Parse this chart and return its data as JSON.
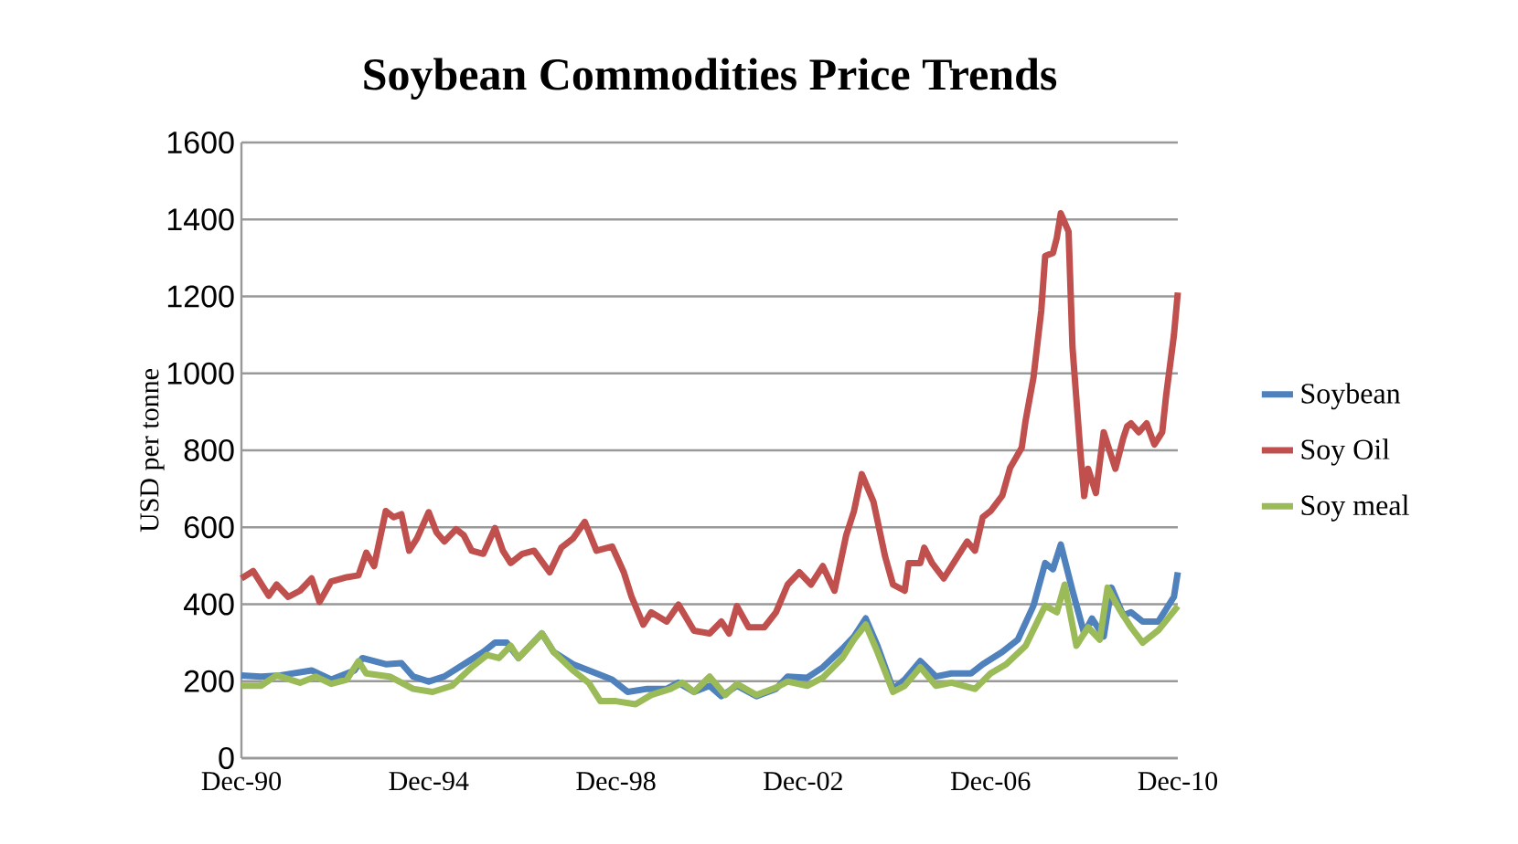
{
  "chart_data": {
    "type": "line",
    "title": "Soybean Commodities Price Trends",
    "ylabel": "USD per tonne",
    "xlim": [
      "1990-12",
      "2010-12"
    ],
    "xticks": [
      {
        "value": "1990-12",
        "label": "Dec-90"
      },
      {
        "value": "1994-12",
        "label": "Dec-94"
      },
      {
        "value": "1998-12",
        "label": "Dec-98"
      },
      {
        "value": "2002-12",
        "label": "Dec-02"
      },
      {
        "value": "2006-12",
        "label": "Dec-06"
      },
      {
        "value": "2010-12",
        "label": "Dec-10"
      }
    ],
    "ylim": [
      0,
      1600
    ],
    "yticks": [
      0,
      200,
      400,
      600,
      800,
      1000,
      1200,
      1400,
      1600
    ],
    "grid": "y",
    "legend": "right",
    "marker": "none",
    "series": [
      {
        "name": "Soybean",
        "color": "#4f81bd",
        "x": [
          "1990-12",
          "1991-05",
          "1991-10",
          "1992-06",
          "1992-11",
          "1993-05",
          "1993-07",
          "1994-01",
          "1994-05",
          "1994-08",
          "1994-12",
          "1995-04",
          "1995-09",
          "1996-02",
          "1996-05",
          "1996-08",
          "1996-11",
          "1997-02",
          "1997-05",
          "1997-08",
          "1998-01",
          "1998-07",
          "1998-11",
          "1999-03",
          "1999-08",
          "2000-01",
          "2000-04",
          "2000-08",
          "2000-12",
          "2001-03",
          "2001-07",
          "2001-12",
          "2002-05",
          "2002-08",
          "2003-01",
          "2003-05",
          "2003-10",
          "2004-01",
          "2004-04",
          "2004-07",
          "2004-11",
          "2005-02",
          "2005-06",
          "2005-10",
          "2006-02",
          "2006-07",
          "2006-10",
          "2007-03",
          "2007-07",
          "2007-11",
          "2008-02",
          "2008-04",
          "2008-06",
          "2008-09",
          "2008-12",
          "2009-02",
          "2009-05",
          "2009-07",
          "2009-10",
          "2009-12",
          "2010-03",
          "2010-07",
          "2010-11",
          "2010-12"
        ],
        "values": [
          215,
          212,
          215,
          228,
          204,
          228,
          260,
          244,
          247,
          212,
          199,
          212,
          244,
          276,
          300,
          300,
          260,
          292,
          324,
          276,
          244,
          220,
          204,
          172,
          180,
          180,
          196,
          172,
          188,
          161,
          188,
          161,
          180,
          212,
          209,
          236,
          284,
          316,
          363,
          292,
          180,
          204,
          252,
          212,
          220,
          220,
          244,
          276,
          308,
          396,
          507,
          491,
          555,
          435,
          324,
          363,
          316,
          443,
          371,
          379,
          355,
          355,
          419,
          483
        ]
      },
      {
        "name": "Soy Oil",
        "color": "#c0504d",
        "x": [
          "1990-12",
          "1991-03",
          "1991-07",
          "1991-09",
          "1991-12",
          "1992-03",
          "1992-06",
          "1992-08",
          "1992-11",
          "1993-03",
          "1993-06",
          "1993-08",
          "1993-10",
          "1994-01",
          "1994-03",
          "1994-05",
          "1994-07",
          "1994-09",
          "1994-12",
          "1995-02",
          "1995-04",
          "1995-07",
          "1995-09",
          "1995-11",
          "1996-02",
          "1996-05",
          "1996-07",
          "1996-09",
          "1996-12",
          "1997-03",
          "1997-07",
          "1997-10",
          "1998-01",
          "1998-04",
          "1998-07",
          "1998-11",
          "1999-02",
          "1999-04",
          "1999-07",
          "1999-09",
          "2000-01",
          "2000-04",
          "2000-08",
          "2000-12",
          "2001-03",
          "2001-05",
          "2001-07",
          "2001-10",
          "2002-02",
          "2002-05",
          "2002-08",
          "2002-11",
          "2003-02",
          "2003-05",
          "2003-08",
          "2003-11",
          "2004-01",
          "2004-03",
          "2004-06",
          "2004-09",
          "2004-11",
          "2005-02",
          "2005-03",
          "2005-06",
          "2005-07",
          "2005-09",
          "2005-12",
          "2006-03",
          "2006-06",
          "2006-08",
          "2006-10",
          "2006-12",
          "2007-03",
          "2007-05",
          "2007-08",
          "2007-09",
          "2007-11",
          "2008-01",
          "2008-02",
          "2008-04",
          "2008-05",
          "2008-06",
          "2008-08",
          "2008-09",
          "2008-11",
          "2008-12",
          "2009-01",
          "2009-03",
          "2009-05",
          "2009-06",
          "2009-08",
          "2009-10",
          "2009-11",
          "2009-12",
          "2010-02",
          "2010-04",
          "2010-06",
          "2010-08",
          "2010-09",
          "2010-11",
          "2010-12"
        ],
        "values": [
          467,
          486,
          422,
          451,
          419,
          435,
          467,
          406,
          459,
          470,
          475,
          534,
          499,
          642,
          626,
          634,
          539,
          571,
          639,
          587,
          563,
          595,
          579,
          539,
          531,
          598,
          539,
          507,
          531,
          539,
          483,
          547,
          571,
          614,
          539,
          550,
          483,
          419,
          347,
          379,
          355,
          399,
          331,
          324,
          355,
          324,
          395,
          340,
          340,
          379,
          451,
          483,
          451,
          499,
          435,
          579,
          642,
          738,
          666,
          523,
          451,
          435,
          507,
          507,
          547,
          507,
          467,
          515,
          563,
          539,
          626,
          642,
          682,
          754,
          807,
          878,
          989,
          1163,
          1305,
          1313,
          1353,
          1416,
          1368,
          1068,
          799,
          681,
          752,
          689,
          847,
          815,
          752,
          831,
          862,
          870,
          847,
          870,
          815,
          847,
          942,
          1099,
          1210
        ]
      },
      {
        "name": "Soy meal",
        "color": "#9bbb59",
        "x": [
          "1990-12",
          "1991-05",
          "1991-09",
          "1992-03",
          "1992-07",
          "1992-11",
          "1993-03",
          "1993-06",
          "1993-08",
          "1994-02",
          "1994-08",
          "1995-01",
          "1995-06",
          "1995-11",
          "1996-03",
          "1996-06",
          "1996-09",
          "1996-11",
          "1997-05",
          "1997-08",
          "1998-01",
          "1998-05",
          "1998-08",
          "1998-12",
          "1999-05",
          "1999-09",
          "2000-02",
          "2000-05",
          "2000-08",
          "2000-12",
          "2001-04",
          "2001-07",
          "2001-12",
          "2002-05",
          "2002-08",
          "2003-01",
          "2003-05",
          "2003-10",
          "2004-01",
          "2004-04",
          "2004-07",
          "2004-11",
          "2005-02",
          "2005-06",
          "2005-10",
          "2006-02",
          "2006-08",
          "2006-12",
          "2007-04",
          "2007-09",
          "2008-02",
          "2008-05",
          "2008-07",
          "2008-10",
          "2009-01",
          "2009-04",
          "2009-06",
          "2009-09",
          "2009-12",
          "2010-03",
          "2010-07",
          "2010-12"
        ],
        "values": [
          188,
          188,
          215,
          196,
          212,
          193,
          204,
          252,
          220,
          212,
          180,
          172,
          188,
          236,
          268,
          260,
          292,
          260,
          324,
          276,
          228,
          196,
          148,
          148,
          140,
          164,
          180,
          196,
          172,
          212,
          164,
          193,
          164,
          183,
          199,
          188,
          209,
          260,
          308,
          347,
          276,
          172,
          188,
          236,
          188,
          196,
          180,
          220,
          244,
          292,
          396,
          379,
          451,
          292,
          340,
          308,
          443,
          387,
          340,
          300,
          332,
          395
        ]
      }
    ]
  }
}
